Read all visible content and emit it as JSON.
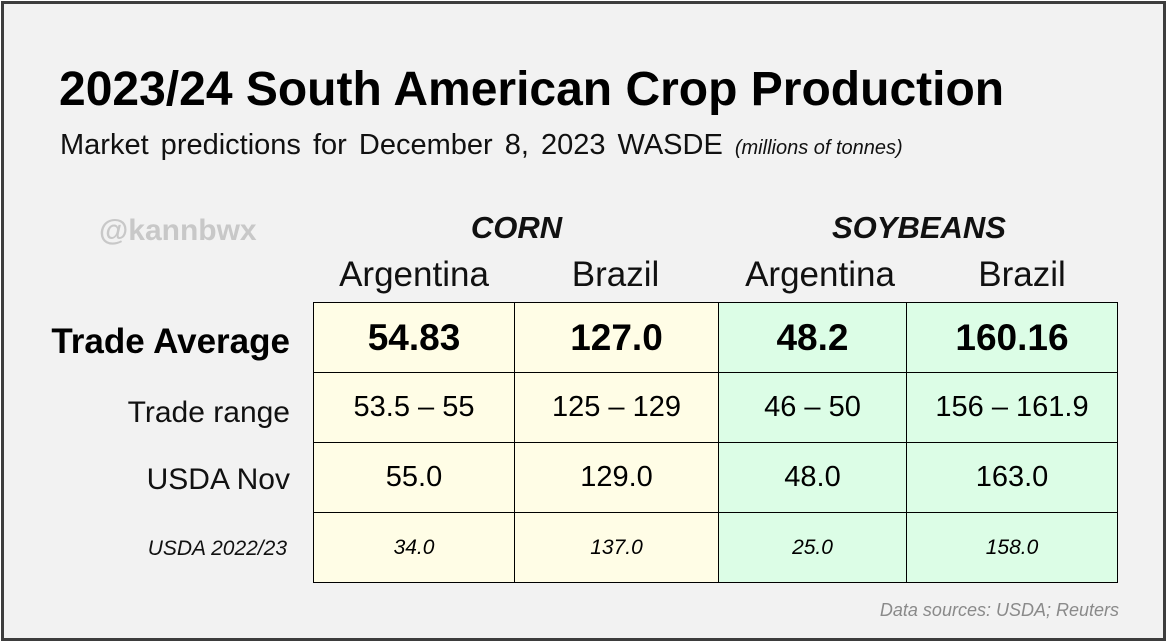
{
  "title": "2023/24 South American Crop Production",
  "subtitle": "Market predictions for December 8, 2023 WASDE",
  "units_note": "(millions of tonnes)",
  "watermark": "@kannbwx",
  "source": "Data sources: USDA; Reuters",
  "colors": {
    "corn_fill": "#fffde6",
    "soybean_fill": "#dcfde6",
    "frame": "#3d3d3d",
    "background": "#f2f2f2"
  },
  "chart_data": {
    "type": "table",
    "title": "2023/24 South American Crop Production",
    "subtitle": "Market predictions for December 8, 2023 WASDE",
    "groups": [
      {
        "name": "CORN",
        "columns": [
          "Argentina",
          "Brazil"
        ]
      },
      {
        "name": "SOYBEANS",
        "columns": [
          "Argentina",
          "Brazil"
        ]
      }
    ],
    "rows": [
      {
        "label": "Trade Average",
        "values": [
          "54.83",
          "127.0",
          "48.2",
          "160.16"
        ]
      },
      {
        "label": "Trade range",
        "values": [
          "53.5 – 55",
          "125 – 129",
          "46 – 50",
          "156 – 161.9"
        ]
      },
      {
        "label": "USDA Nov",
        "values": [
          "55.0",
          "129.0",
          "48.0",
          "163.0"
        ]
      },
      {
        "label": "USDA 2022/23",
        "values": [
          "34.0",
          "137.0",
          "25.0",
          "158.0"
        ]
      }
    ]
  }
}
